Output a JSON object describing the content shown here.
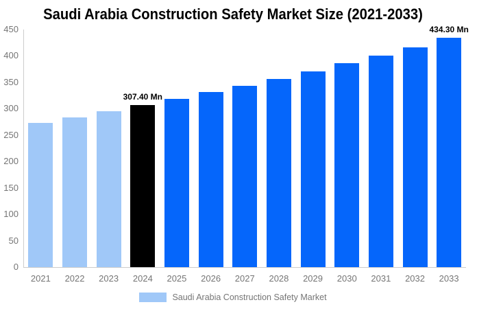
{
  "chart_data": {
    "type": "bar",
    "title": "Saudi Arabia Construction Safety Market Size (2021-2033)",
    "categories": [
      "2021",
      "2022",
      "2023",
      "2024",
      "2025",
      "2026",
      "2027",
      "2028",
      "2029",
      "2030",
      "2031",
      "2032",
      "2033"
    ],
    "values": [
      272.9,
      283.6,
      294.8,
      307.4,
      319.0,
      331.1,
      342.9,
      356.3,
      371.2,
      385.8,
      400.5,
      416.1,
      434.3
    ],
    "unit": "Mn",
    "xlabel": "",
    "ylabel": "",
    "ylim": [
      0,
      450
    ],
    "yticks": [
      0,
      50,
      100,
      150,
      200,
      250,
      300,
      350,
      400,
      450
    ],
    "grid": false,
    "legend_position": "bottom",
    "series_name": "Saudi Arabia Construction Safety Market",
    "annotations": [
      {
        "index": 3,
        "text": "307.40 Mn"
      },
      {
        "index": 12,
        "text": "434.30 Mn"
      }
    ],
    "colors": {
      "historical": "#A0C8F8",
      "base_year": "#000000",
      "forecast": "#0566FB"
    },
    "bar_roles": [
      "historical",
      "historical",
      "historical",
      "base_year",
      "forecast",
      "forecast",
      "forecast",
      "forecast",
      "forecast",
      "forecast",
      "forecast",
      "forecast",
      "forecast"
    ],
    "axis_color": "#CCCCCC",
    "tick_label_color": "#757575",
    "title_color": "#000000",
    "annotation_color": "#000000"
  }
}
